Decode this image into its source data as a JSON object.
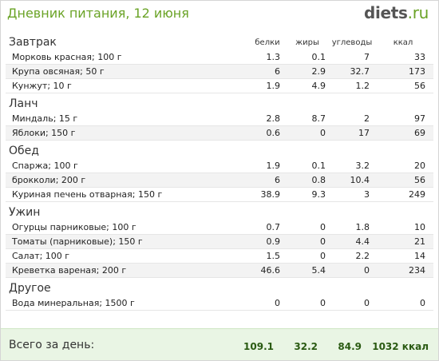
{
  "header": {
    "title": "Дневник питания, 12 июня",
    "logo_main": "diets",
    "logo_tld": ".ru"
  },
  "columns": {
    "protein": "белки",
    "fat": "жиры",
    "carbs": "углеводы",
    "kcal": "ккал"
  },
  "meals": [
    {
      "name": "Завтрак",
      "items": [
        {
          "food": "Морковь красная; 100 г",
          "protein": "1.3",
          "fat": "0.1",
          "carbs": "7",
          "kcal": "33"
        },
        {
          "food": "Крупа овсяная; 50 г",
          "protein": "6",
          "fat": "2.9",
          "carbs": "32.7",
          "kcal": "173"
        },
        {
          "food": "Кунжут; 10 г",
          "protein": "1.9",
          "fat": "4.9",
          "carbs": "1.2",
          "kcal": "56"
        }
      ]
    },
    {
      "name": "Ланч",
      "items": [
        {
          "food": "Миндаль; 15 г",
          "protein": "2.8",
          "fat": "8.7",
          "carbs": "2",
          "kcal": "97"
        },
        {
          "food": "Яблоки; 150 г",
          "protein": "0.6",
          "fat": "0",
          "carbs": "17",
          "kcal": "69"
        }
      ]
    },
    {
      "name": "Обед",
      "items": [
        {
          "food": "Спаржа; 100 г",
          "protein": "1.9",
          "fat": "0.1",
          "carbs": "3.2",
          "kcal": "20"
        },
        {
          "food": "брокколи; 200 г",
          "protein": "6",
          "fat": "0.8",
          "carbs": "10.4",
          "kcal": "56"
        },
        {
          "food": "Куриная печень отварная; 150 г",
          "protein": "38.9",
          "fat": "9.3",
          "carbs": "3",
          "kcal": "249"
        }
      ]
    },
    {
      "name": "Ужин",
      "items": [
        {
          "food": "Огурцы парниковые; 100 г",
          "protein": "0.7",
          "fat": "0",
          "carbs": "1.8",
          "kcal": "10"
        },
        {
          "food": "Томаты (парниковые); 150 г",
          "protein": "0.9",
          "fat": "0",
          "carbs": "4.4",
          "kcal": "21"
        },
        {
          "food": "Салат; 100 г",
          "protein": "1.5",
          "fat": "0",
          "carbs": "2.2",
          "kcal": "14"
        },
        {
          "food": "Креветка вареная; 200 г",
          "protein": "46.6",
          "fat": "5.4",
          "carbs": "0",
          "kcal": "234"
        }
      ]
    },
    {
      "name": "Другое",
      "items": [
        {
          "food": "Вода минеральная; 1500 г",
          "protein": "0",
          "fat": "0",
          "carbs": "0",
          "kcal": "0"
        }
      ]
    }
  ],
  "totals": {
    "label": "Всего за день:",
    "protein": "109.1",
    "fat": "32.2",
    "carbs": "84.9",
    "kcal": "1032 ккал"
  }
}
